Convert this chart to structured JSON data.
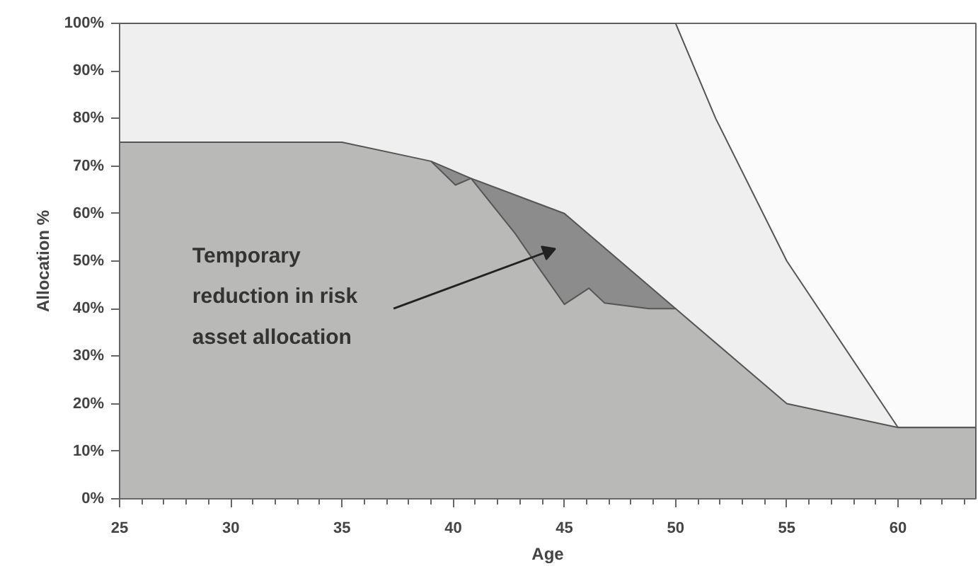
{
  "chart_data": {
    "type": "area",
    "xlabel": "Age",
    "ylabel": "Allocation %",
    "xlim": [
      25,
      63.5
    ],
    "xticks": [
      25,
      30,
      35,
      40,
      45,
      50,
      55,
      60
    ],
    "ylim": [
      0,
      100
    ],
    "yticks": [
      {
        "value": 0,
        "label": "0%"
      },
      {
        "value": 10,
        "label": "10%"
      },
      {
        "value": 20,
        "label": "20%"
      },
      {
        "value": 30,
        "label": "30%"
      },
      {
        "value": 40,
        "label": "40%"
      },
      {
        "value": 50,
        "label": "50%"
      },
      {
        "value": 60,
        "label": "60%"
      },
      {
        "value": 70,
        "label": "70%"
      },
      {
        "value": 80,
        "label": "80%"
      },
      {
        "value": 90,
        "label": "90%"
      },
      {
        "value": 100,
        "label": "100%"
      }
    ],
    "series": [
      {
        "color": "#efefef",
        "x": [
          25,
          50,
          51.8,
          55,
          60,
          63.5
        ],
        "values": [
          100,
          100,
          80,
          50,
          15,
          15
        ]
      },
      {
        "color": "#8c8c8c",
        "x": [
          39,
          40.8,
          45,
          50
        ],
        "values": [
          71,
          67.4,
          60,
          40
        ]
      },
      {
        "color": "#b9b9b7",
        "x": [
          25,
          35,
          39,
          40.1,
          40.8,
          42.8,
          43.8,
          45,
          46.1,
          46.8,
          48.8,
          50,
          55,
          60,
          63.5
        ],
        "values": [
          75,
          75,
          71,
          66,
          67.4,
          55.7,
          48.9,
          40.9,
          44.3,
          41.2,
          40,
          40,
          20,
          15,
          15
        ]
      }
    ],
    "annotations": [
      "Temporary\nreduction in risk\nasset allocation"
    ],
    "grid": false
  }
}
